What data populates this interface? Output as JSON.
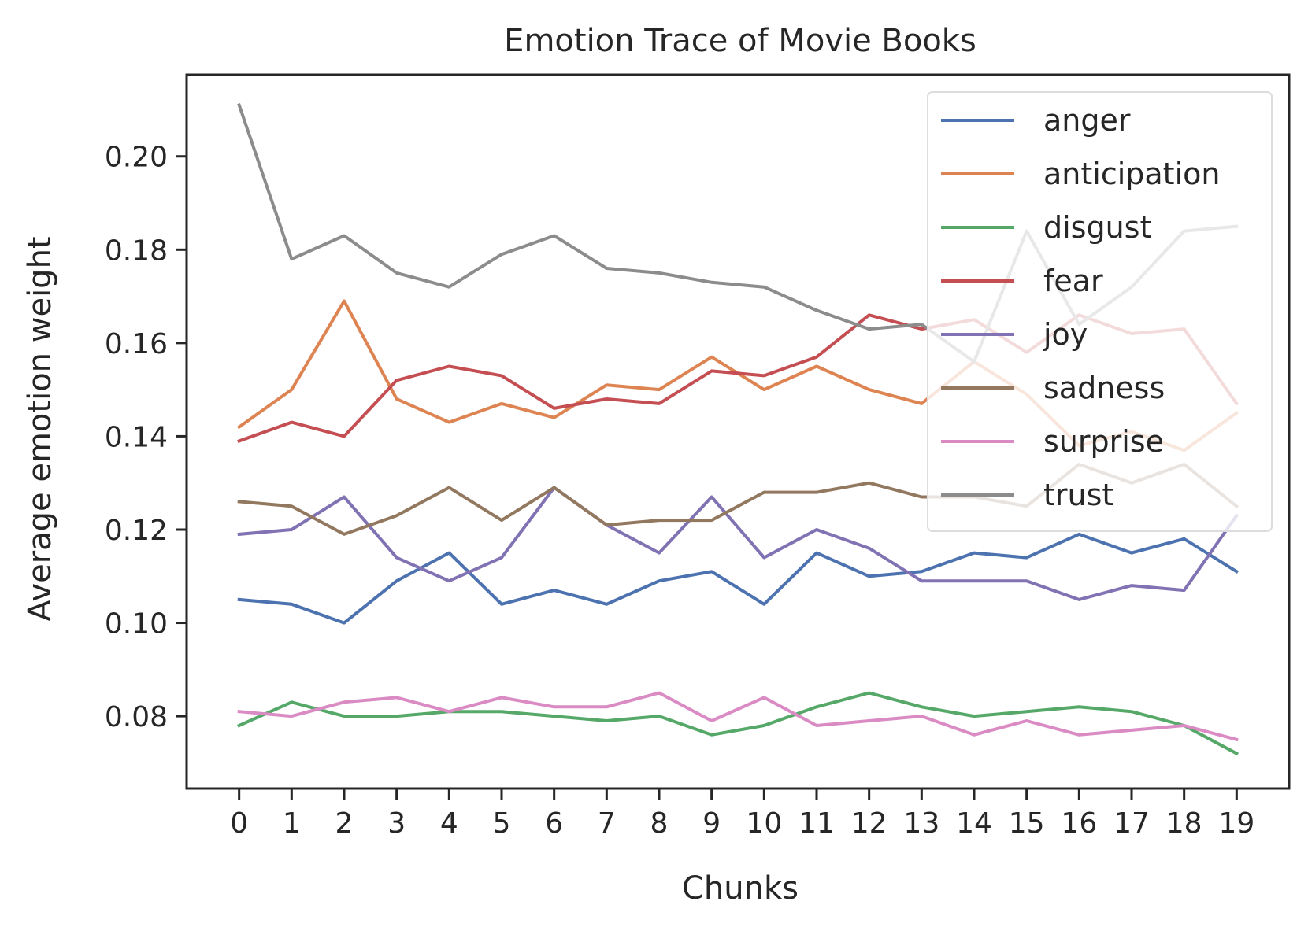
{
  "chart_data": {
    "type": "line",
    "title": "Emotion Trace of Movie Books",
    "xlabel": "Chunks",
    "ylabel": "Average emotion weight",
    "x": [
      0,
      1,
      2,
      3,
      4,
      5,
      6,
      7,
      8,
      9,
      10,
      11,
      12,
      13,
      14,
      15,
      16,
      17,
      18,
      19
    ],
    "x_tick_labels": [
      "0",
      "1",
      "2",
      "3",
      "4",
      "5",
      "6",
      "7",
      "8",
      "9",
      "10",
      "11",
      "12",
      "13",
      "14",
      "15",
      "16",
      "17",
      "18",
      "19"
    ],
    "xlim": [
      -1,
      20
    ],
    "ylim": [
      0.0645,
      0.2175
    ],
    "y_ticks": [
      0.08,
      0.1,
      0.12,
      0.14,
      0.16,
      0.18,
      0.2
    ],
    "y_tick_labels": [
      "0.08",
      "0.10",
      "0.12",
      "0.14",
      "0.16",
      "0.18",
      "0.20"
    ],
    "grid": false,
    "legend_position": "top-right",
    "series": [
      {
        "name": "anger",
        "color": "#4c72b0",
        "values": [
          0.105,
          0.104,
          0.1,
          0.109,
          0.115,
          0.104,
          0.107,
          0.104,
          0.109,
          0.111,
          0.104,
          0.115,
          0.11,
          0.111,
          0.115,
          0.114,
          0.119,
          0.115,
          0.118,
          0.111
        ]
      },
      {
        "name": "anticipation",
        "color": "#dd8452",
        "values": [
          0.142,
          0.15,
          0.169,
          0.148,
          0.143,
          0.147,
          0.144,
          0.151,
          0.15,
          0.157,
          0.15,
          0.155,
          0.15,
          0.147,
          0.156,
          0.149,
          0.138,
          0.141,
          0.137,
          0.145
        ]
      },
      {
        "name": "disgust",
        "color": "#55a868",
        "values": [
          0.078,
          0.083,
          0.08,
          0.08,
          0.081,
          0.081,
          0.08,
          0.079,
          0.08,
          0.076,
          0.078,
          0.082,
          0.085,
          0.082,
          0.08,
          0.081,
          0.082,
          0.081,
          0.078,
          0.072
        ]
      },
      {
        "name": "fear",
        "color": "#c44e52",
        "values": [
          0.139,
          0.143,
          0.14,
          0.152,
          0.155,
          0.153,
          0.146,
          0.148,
          0.147,
          0.154,
          0.153,
          0.157,
          0.166,
          0.163,
          0.165,
          0.158,
          0.166,
          0.162,
          0.163,
          0.147
        ]
      },
      {
        "name": "joy",
        "color": "#8172b3",
        "values": [
          0.119,
          0.12,
          0.127,
          0.114,
          0.109,
          0.114,
          0.129,
          0.121,
          0.115,
          0.127,
          0.114,
          0.12,
          0.116,
          0.109,
          0.109,
          0.109,
          0.105,
          0.108,
          0.107,
          0.123
        ]
      },
      {
        "name": "sadness",
        "color": "#937860",
        "values": [
          0.126,
          0.125,
          0.119,
          0.123,
          0.129,
          0.122,
          0.129,
          0.121,
          0.122,
          0.122,
          0.128,
          0.128,
          0.13,
          0.127,
          0.127,
          0.125,
          0.134,
          0.13,
          0.134,
          0.125
        ]
      },
      {
        "name": "surprise",
        "color": "#da8bc3",
        "values": [
          0.081,
          0.08,
          0.083,
          0.084,
          0.081,
          0.084,
          0.082,
          0.082,
          0.085,
          0.079,
          0.084,
          0.078,
          0.079,
          0.08,
          0.076,
          0.079,
          0.076,
          0.077,
          0.078,
          0.075
        ]
      },
      {
        "name": "trust",
        "color": "#8c8c8c",
        "values": [
          0.211,
          0.178,
          0.183,
          0.175,
          0.172,
          0.179,
          0.183,
          0.176,
          0.175,
          0.173,
          0.172,
          0.167,
          0.163,
          0.164,
          0.156,
          0.184,
          0.164,
          0.172,
          0.184,
          0.185
        ]
      }
    ]
  }
}
